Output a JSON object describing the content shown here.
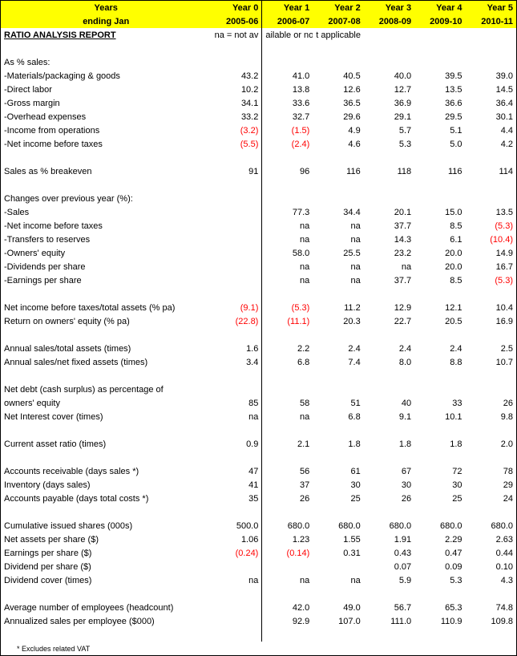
{
  "header": {
    "line1_label": "Years",
    "line2_label": "ending Jan",
    "cols": [
      {
        "l1": "Year 0",
        "l2": "2005-06"
      },
      {
        "l1": "Year 1",
        "l2": "2006-07"
      },
      {
        "l1": "Year 2",
        "l2": "2007-08"
      },
      {
        "l1": "Year 3",
        "l2": "2008-09"
      },
      {
        "l1": "Year 4",
        "l2": "2009-10"
      },
      {
        "l1": "Year 5",
        "l2": "2010-11"
      }
    ]
  },
  "title": "RATIO ANALYSIS REPORT",
  "na_note": "na = not available or not applicable",
  "sections": [
    {
      "type": "blank"
    },
    {
      "type": "header",
      "label": "As % sales:"
    },
    {
      "type": "row",
      "label": " -Materials/packaging & goods",
      "v": [
        "43.2",
        "41.0",
        "40.5",
        "40.0",
        "39.5",
        "39.0"
      ]
    },
    {
      "type": "row",
      "label": " -Direct labor",
      "v": [
        "10.2",
        "13.8",
        "12.6",
        "12.7",
        "13.5",
        "14.5"
      ]
    },
    {
      "type": "row",
      "label": " -Gross margin",
      "v": [
        "34.1",
        "33.6",
        "36.5",
        "36.9",
        "36.6",
        "36.4"
      ]
    },
    {
      "type": "row",
      "label": " -Overhead expenses",
      "v": [
        "33.2",
        "32.7",
        "29.6",
        "29.1",
        "29.5",
        "30.1"
      ]
    },
    {
      "type": "row",
      "label": " -Income from operations",
      "v": [
        "(3.2)",
        "(1.5)",
        "4.9",
        "5.7",
        "5.1",
        "4.4"
      ],
      "neg": [
        true,
        true,
        false,
        false,
        false,
        false
      ]
    },
    {
      "type": "row",
      "label": " -Net income before taxes",
      "v": [
        "(5.5)",
        "(2.4)",
        "4.6",
        "5.3",
        "5.0",
        "4.2"
      ],
      "neg": [
        true,
        true,
        false,
        false,
        false,
        false
      ]
    },
    {
      "type": "blank"
    },
    {
      "type": "row",
      "label": "Sales as % breakeven",
      "v": [
        "91",
        "96",
        "116",
        "118",
        "116",
        "114"
      ]
    },
    {
      "type": "blank"
    },
    {
      "type": "header",
      "label": "Changes over previous year (%):"
    },
    {
      "type": "row",
      "label": " -Sales",
      "v": [
        "",
        "77.3",
        "34.4",
        "20.1",
        "15.0",
        "13.5"
      ]
    },
    {
      "type": "row",
      "label": " -Net income before taxes",
      "v": [
        "",
        "na",
        "na",
        "37.7",
        "8.5",
        "(5.3)"
      ],
      "neg": [
        false,
        false,
        false,
        false,
        false,
        true
      ]
    },
    {
      "type": "row",
      "label": " -Transfers to reserves",
      "v": [
        "",
        "na",
        "na",
        "14.3",
        "6.1",
        "(10.4)"
      ],
      "neg": [
        false,
        false,
        false,
        false,
        false,
        true
      ]
    },
    {
      "type": "row",
      "label": " -Owners' equity",
      "v": [
        "",
        "58.0",
        "25.5",
        "23.2",
        "20.0",
        "14.9"
      ]
    },
    {
      "type": "row",
      "label": " -Dividends per share",
      "v": [
        "",
        "na",
        "na",
        "na",
        "20.0",
        "16.7"
      ]
    },
    {
      "type": "row",
      "label": " -Earnings per share",
      "v": [
        "",
        "na",
        "na",
        "37.7",
        "8.5",
        "(5.3)"
      ],
      "neg": [
        false,
        false,
        false,
        false,
        false,
        true
      ]
    },
    {
      "type": "blank"
    },
    {
      "type": "row",
      "label": "Net income before taxes/total assets (% pa)",
      "v": [
        "(9.1)",
        "(5.3)",
        "11.2",
        "12.9",
        "12.1",
        "10.4"
      ],
      "neg": [
        true,
        true,
        false,
        false,
        false,
        false
      ]
    },
    {
      "type": "row",
      "label": "Return on owners' equity (% pa)",
      "v": [
        "(22.8)",
        "(11.1)",
        "20.3",
        "22.7",
        "20.5",
        "16.9"
      ],
      "neg": [
        true,
        true,
        false,
        false,
        false,
        false
      ]
    },
    {
      "type": "blank"
    },
    {
      "type": "row",
      "label": "Annual sales/total assets (times)",
      "v": [
        "1.6",
        "2.2",
        "2.4",
        "2.4",
        "2.4",
        "2.5"
      ]
    },
    {
      "type": "row",
      "label": "Annual sales/net fixed assets (times)",
      "v": [
        "3.4",
        "6.8",
        "7.4",
        "8.0",
        "8.8",
        "10.7"
      ]
    },
    {
      "type": "blank"
    },
    {
      "type": "header",
      "label": "Net debt (cash surplus) as percentage of"
    },
    {
      "type": "row",
      "label": "  owners' equity",
      "v": [
        "85",
        "58",
        "51",
        "40",
        "33",
        "26"
      ]
    },
    {
      "type": "row",
      "label": "Net Interest cover (times)",
      "v": [
        "na",
        "na",
        "6.8",
        "9.1",
        "10.1",
        "9.8"
      ]
    },
    {
      "type": "blank"
    },
    {
      "type": "row",
      "label": "Current asset ratio (times)",
      "v": [
        "0.9",
        "2.1",
        "1.8",
        "1.8",
        "1.8",
        "2.0"
      ]
    },
    {
      "type": "blank"
    },
    {
      "type": "row",
      "label": "Accounts receivable (days sales *)",
      "v": [
        "47",
        "56",
        "61",
        "67",
        "72",
        "78"
      ]
    },
    {
      "type": "row",
      "label": "Inventory (days sales)",
      "v": [
        "41",
        "37",
        "30",
        "30",
        "30",
        "29"
      ]
    },
    {
      "type": "row",
      "label": "Accounts payable (days total costs *)",
      "v": [
        "35",
        "26",
        "25",
        "26",
        "25",
        "24"
      ]
    },
    {
      "type": "blank"
    },
    {
      "type": "row",
      "label": "Cumulative issued shares (000s)",
      "v": [
        "500.0",
        "680.0",
        "680.0",
        "680.0",
        "680.0",
        "680.0"
      ]
    },
    {
      "type": "row",
      "label": "Net assets per share ($)",
      "v": [
        "1.06",
        "1.23",
        "1.55",
        "1.91",
        "2.29",
        "2.63"
      ]
    },
    {
      "type": "row",
      "label": "Earnings per share ($)",
      "v": [
        "(0.24)",
        "(0.14)",
        "0.31",
        "0.43",
        "0.47",
        "0.44"
      ],
      "neg": [
        true,
        true,
        false,
        false,
        false,
        false
      ]
    },
    {
      "type": "row",
      "label": "Dividend per share ($)",
      "v": [
        "",
        "",
        "",
        "0.07",
        "0.09",
        "0.10"
      ]
    },
    {
      "type": "row",
      "label": "Dividend cover (times)",
      "v": [
        "na",
        "na",
        "na",
        "5.9",
        "5.3",
        "4.3"
      ]
    },
    {
      "type": "blank"
    },
    {
      "type": "row",
      "label": "Average number of employees (headcount)",
      "v": [
        "",
        "42.0",
        "49.0",
        "56.7",
        "65.3",
        "74.8"
      ]
    },
    {
      "type": "row",
      "label": "Annualized sales per employee ($000)",
      "v": [
        "",
        "92.9",
        "107.0",
        "111.0",
        "110.9",
        "109.8"
      ]
    },
    {
      "type": "blank"
    }
  ],
  "footnote": "* Excludes related VAT"
}
